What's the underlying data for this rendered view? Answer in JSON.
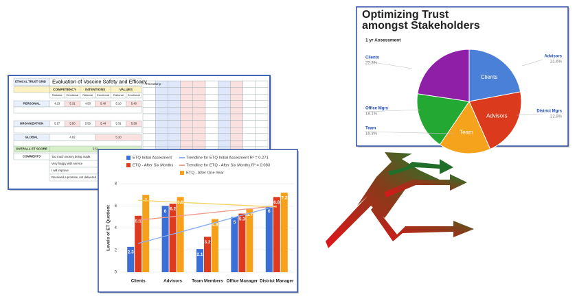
{
  "spreadsheet": {
    "corner": "ETHICAL TRUST GRID",
    "title": "Evaluation of Vaccine Safety and Efficacy",
    "groups": [
      "COMPETENCY",
      "INTENTIONS",
      "VALUES"
    ],
    "subheads": [
      "Rational",
      "Emotional",
      "Rational",
      "Emotional",
      "Rational",
      "Emotional"
    ],
    "rows": [
      {
        "label": "PERSONAL",
        "cells": [
          "4.23",
          "5.31",
          "4.50",
          "5.40",
          "5.10",
          "5.40"
        ]
      },
      {
        "label": "ORGANIZATION",
        "cells": [
          "5.17",
          "5.50",
          "5.50",
          "5.44",
          "5.31",
          "5.38"
        ]
      },
      {
        "label": "GLOBAL",
        "cells": [
          "4.82",
          "5.10"
        ]
      },
      {
        "label": "OVERALL ET SCORE",
        "cells": [
          "5.51"
        ]
      }
    ],
    "comments_label": "COMMENTS",
    "comments": [
      "Too much money being made.",
      "Very happy with service",
      "I will improve",
      "Received a promise, not delivered"
    ],
    "timestamp": "Timestamp"
  },
  "chart_data": [
    {
      "type": "bar",
      "categories": [
        "Clients",
        "Advisors",
        "Team Members",
        "Office Manager",
        "District Manager"
      ],
      "series": [
        {
          "name": "ETQ Initial Assesment",
          "color": "#3c6fd6",
          "values": [
            2.3,
            6,
            2.1,
            5,
            6
          ]
        },
        {
          "name": "ETQ - After Six Months",
          "color": "#de3a1f",
          "values": [
            5.1,
            6.2,
            3.2,
            5.3,
            6.8
          ]
        },
        {
          "name": "ETQ - After One Year",
          "color": "#f7a11a",
          "values": [
            7,
            6.8,
            4.8,
            5.7,
            7.2
          ]
        }
      ],
      "trendlines": [
        {
          "name": "Trendline for ETQ Initial Assesment R² = 0.271",
          "color": "#8fb0ef",
          "values": [
            2.6,
            6
          ]
        },
        {
          "name": "Trendline for ETQ - After Six Months R² = 0.083",
          "color": "#f09a8c",
          "values": [
            4.7,
            6
          ]
        },
        {
          "color": "#f7d36b",
          "values": [
            6.5,
            5.9
          ]
        }
      ],
      "ylabel": "Levels of ET Quotient",
      "ylim": [
        0,
        8
      ],
      "yticks": [
        0,
        2,
        4,
        6,
        8
      ],
      "grid": true
    },
    {
      "type": "pie",
      "title": [
        "Optimizing Trust",
        "amongst Stakeholders"
      ],
      "subtitle": "1 yr Assessment",
      "categories": [
        "Clients",
        "Advisors",
        "Team",
        "Office Mgrs",
        "District Mgrs"
      ],
      "values": [
        22.3,
        21.6,
        16.3,
        18.1,
        22.9
      ],
      "value_labels": [
        "22.3%",
        "21.6%",
        "16.3%",
        "18.1%",
        "22.9%"
      ],
      "colors": [
        "#4a80d8",
        "#db3b1c",
        "#f5a21c",
        "#23a833",
        "#8f1fa6"
      ]
    }
  ]
}
